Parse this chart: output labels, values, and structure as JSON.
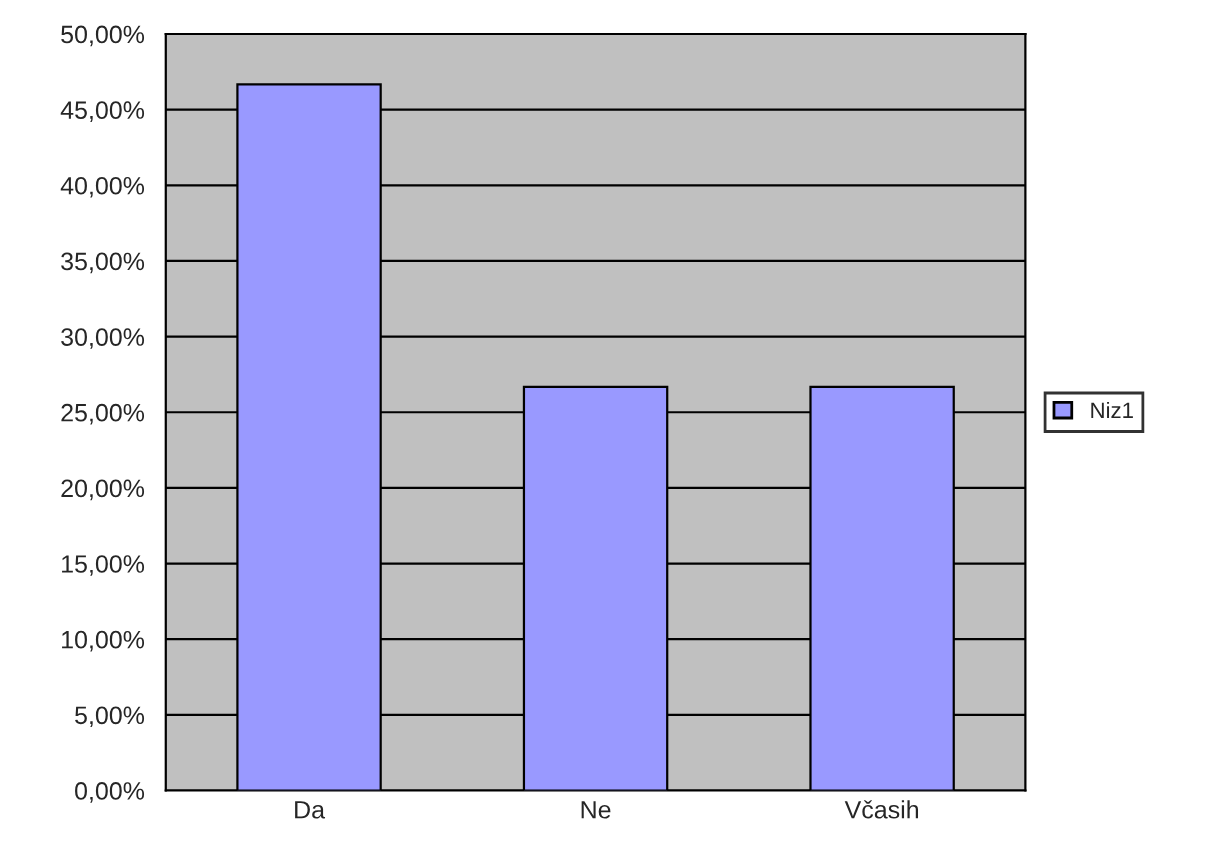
{
  "chart_data": {
    "type": "bar",
    "categories": [
      "Da",
      "Ne",
      "Včasih"
    ],
    "series": [
      {
        "name": "Niz1",
        "color": "#9999ff",
        "values": [
          46.67,
          26.67,
          26.67
        ]
      }
    ],
    "ylim": [
      0,
      50
    ],
    "yticks": [
      {
        "value": 0,
        "label": "0,00%"
      },
      {
        "value": 5,
        "label": "5,00%"
      },
      {
        "value": 10,
        "label": "10,00%"
      },
      {
        "value": 15,
        "label": "15,00%"
      },
      {
        "value": 20,
        "label": "20,00%"
      },
      {
        "value": 25,
        "label": "25,00%"
      },
      {
        "value": 30,
        "label": "30,00%"
      },
      {
        "value": 35,
        "label": "35,00%"
      },
      {
        "value": 40,
        "label": "40,00%"
      },
      {
        "value": 45,
        "label": "45,00%"
      },
      {
        "value": 50,
        "label": "50,00%"
      }
    ],
    "grid": "y",
    "legend": "right"
  }
}
